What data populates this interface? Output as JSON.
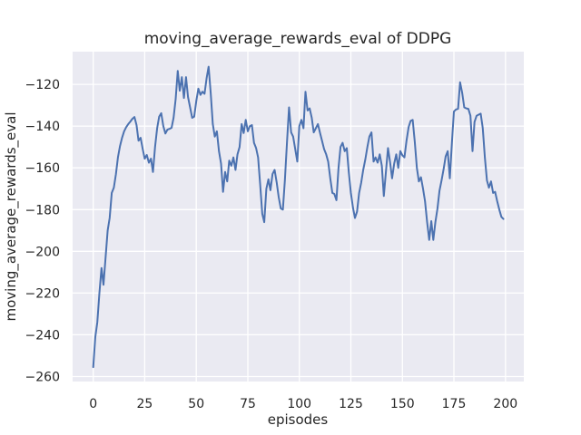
{
  "figure": {
    "title": "moving_average_rewards_eval of DDPG",
    "xlabel": "episodes",
    "ylabel": "moving_average_rewards_eval"
  },
  "colors": {
    "line": "#4c72b0",
    "plot_background": "#eaeaf2",
    "grid": "#ffffff",
    "text": "#262626",
    "figure_background": "#ffffff"
  },
  "chart_data": {
    "type": "line",
    "title": "moving_average_rewards_eval of DDPG",
    "xlabel": "episodes",
    "ylabel": "moving_average_rewards_eval",
    "x_ticks": [
      0,
      25,
      50,
      75,
      100,
      125,
      150,
      175,
      200
    ],
    "y_ticks": [
      -120,
      -140,
      -160,
      -180,
      -200,
      -220,
      -240,
      -260
    ],
    "xlim": [
      -9.99,
      208.9
    ],
    "ylim": [
      -262.4,
      -104.3
    ],
    "grid": true,
    "legend": false,
    "series": [
      {
        "name": "moving_average_rewards_eval",
        "x_start": 0,
        "x_step": 1,
        "values": [
          -255.5,
          -241,
          -234,
          -220,
          -208,
          -216,
          -203,
          -190,
          -184,
          -172,
          -169.5,
          -163,
          -155,
          -149.5,
          -145.5,
          -142.5,
          -140.5,
          -139,
          -137.8,
          -136.5,
          -135.6,
          -139.5,
          -147,
          -145.6,
          -151,
          -155.6,
          -153.8,
          -157.5,
          -155.6,
          -162,
          -150,
          -141,
          -135.5,
          -133.8,
          -140,
          -143.5,
          -141.7,
          -141.3,
          -140.8,
          -136,
          -127,
          -113.5,
          -123,
          -116.5,
          -126.5,
          -116.5,
          -126,
          -131,
          -136,
          -135.5,
          -128,
          -122,
          -125,
          -123.5,
          -124.5,
          -117,
          -111.5,
          -124,
          -139,
          -145,
          -142.5,
          -152,
          -158,
          -171.5,
          -162,
          -166.5,
          -156.5,
          -159,
          -155,
          -161,
          -153.5,
          -150,
          -139,
          -143.3,
          -137,
          -142.5,
          -140,
          -139.5,
          -148,
          -150.5,
          -155,
          -168,
          -182,
          -186,
          -170,
          -165.5,
          -170.7,
          -163,
          -161,
          -167,
          -174,
          -179.5,
          -180,
          -166,
          -148,
          -131,
          -143,
          -145,
          -151,
          -157,
          -140,
          -137,
          -141,
          -123.5,
          -132.5,
          -131.5,
          -136,
          -143,
          -141,
          -139,
          -143,
          -147,
          -151,
          -153.5,
          -157,
          -165,
          -172,
          -172.5,
          -175.5,
          -160,
          -150,
          -148,
          -152,
          -150.5,
          -162,
          -172,
          -179,
          -184,
          -181,
          -172,
          -167,
          -161,
          -156,
          -150,
          -145,
          -143,
          -157,
          -155,
          -157.5,
          -153.5,
          -159,
          -173.5,
          -162,
          -150.5,
          -157,
          -165,
          -158,
          -153.5,
          -160,
          -152,
          -154,
          -155,
          -147,
          -140.5,
          -137.5,
          -137,
          -147.5,
          -160,
          -166.5,
          -164.5,
          -170,
          -176,
          -186,
          -194.5,
          -185.5,
          -194.5,
          -186,
          -179.5,
          -171,
          -166,
          -160.5,
          -154.5,
          -152,
          -165,
          -148,
          -133,
          -132,
          -131.7,
          -119,
          -124,
          -131,
          -131.5,
          -131.7,
          -135,
          -152,
          -138,
          -135,
          -134.5,
          -134,
          -141,
          -155,
          -166,
          -169.5,
          -166.5,
          -172,
          -171.5,
          -176,
          -180,
          -183.5,
          -184.5
        ]
      }
    ]
  }
}
